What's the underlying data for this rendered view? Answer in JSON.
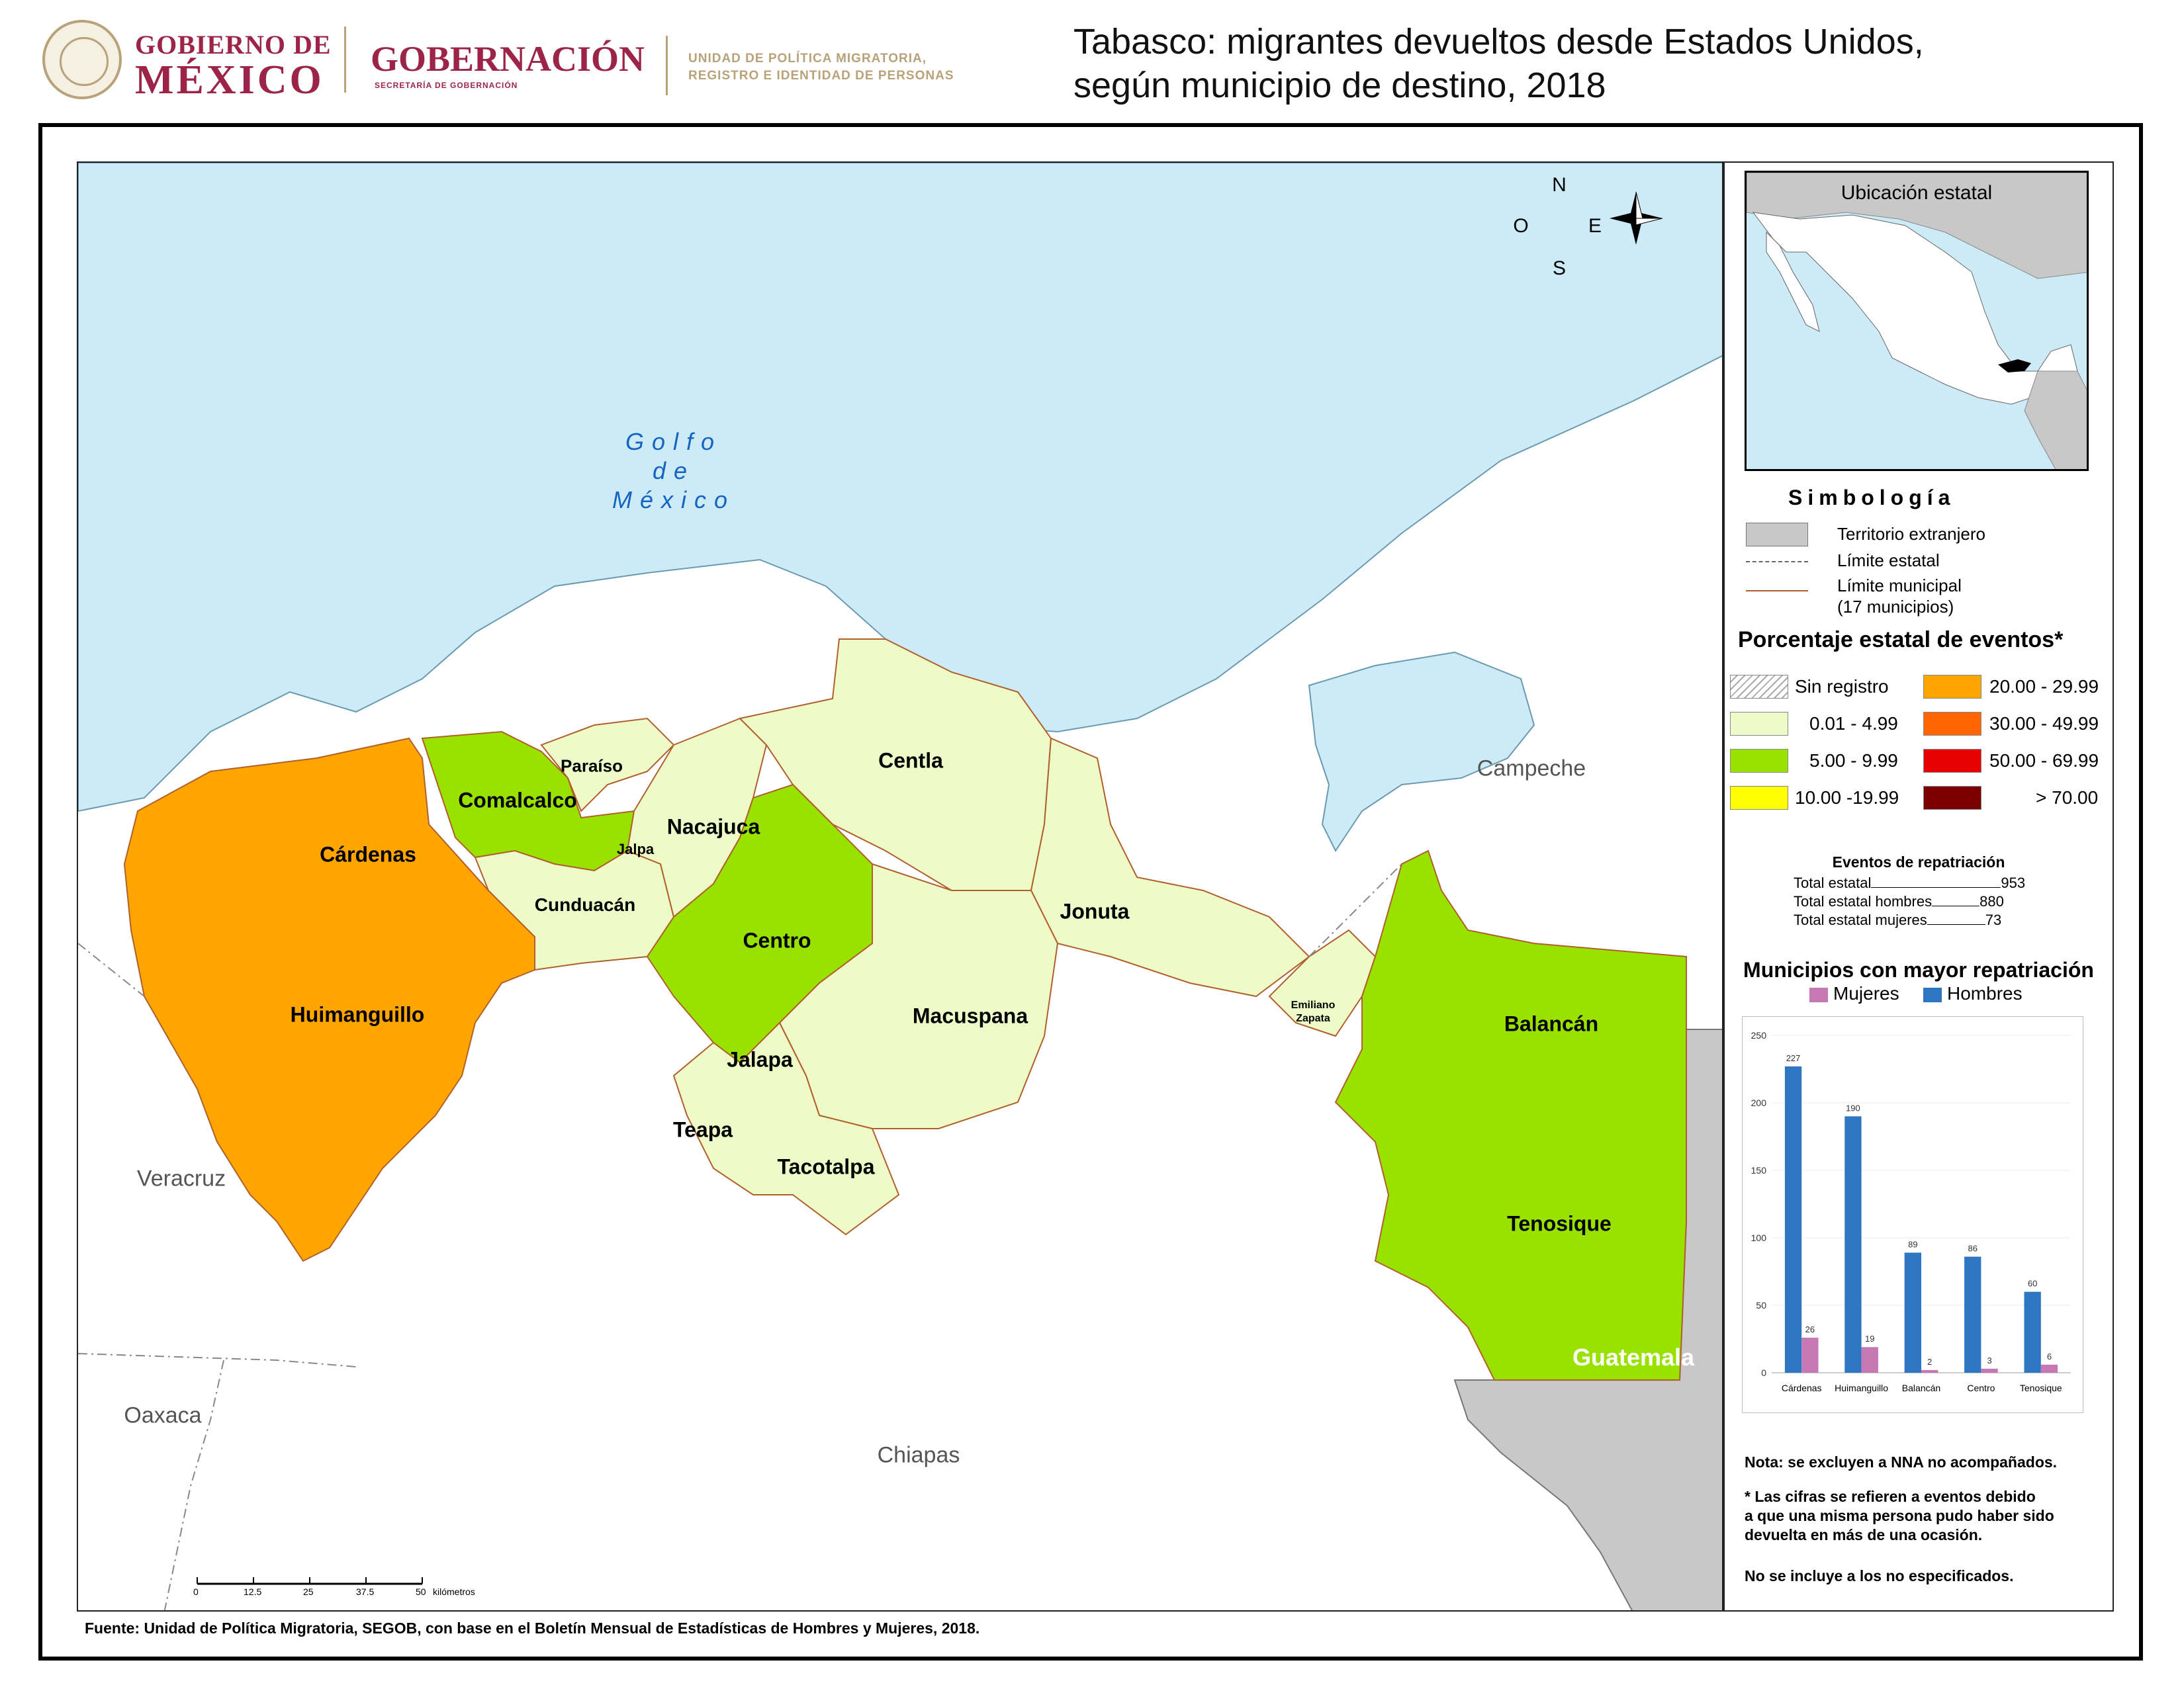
{
  "header": {
    "gob_line1": "GOBIERNO DE",
    "gob_line2": "MÉXICO",
    "gobernacion": "GOBERNACIÓN",
    "gobernacion_sub": "SECRETARÍA DE GOBERNACIÓN",
    "unidad_line1": "UNIDAD DE POLÍTICA MIGRATORIA,",
    "unidad_line2": "REGISTRO E IDENTIDAD DE PERSONAS",
    "title_line1": "Tabasco: migrantes devueltos desde Estados Unidos,",
    "title_line2": "según municipio de destino, 2018"
  },
  "colors": {
    "sea": "#cdeaf7",
    "range_0_5": "#eefbc8",
    "range_5_10": "#99e200",
    "range_20_30": "#ffa500",
    "foreign": "#c8c8c8",
    "hombres": "#2e75c2",
    "mujeres": "#c678b4"
  },
  "map": {
    "gulf_line1": "Golfo",
    "gulf_line2": "de",
    "gulf_line3": "México",
    "compass": {
      "n": "N",
      "s": "S",
      "e": "E",
      "w": "O"
    },
    "regions": {
      "campeche": "Campeche",
      "veracruz": "Veracruz",
      "oaxaca": "Oaxaca",
      "chiapas": "Chiapas",
      "guatemala": "Guatemala"
    },
    "municipios": [
      {
        "name": "Paraíso",
        "range": "0.01 - 4.99"
      },
      {
        "name": "Comalcalco",
        "range": "5.00 - 9.99"
      },
      {
        "name": "Cárdenas",
        "range": "20.00 - 29.99"
      },
      {
        "name": "Jalpa",
        "range": "0.01 - 4.99"
      },
      {
        "name": "Nacajuca",
        "range": "0.01 - 4.99"
      },
      {
        "name": "Centla",
        "range": "0.01 - 4.99"
      },
      {
        "name": "Cunduacán",
        "range": "0.01 - 4.99"
      },
      {
        "name": "Centro",
        "range": "5.00 - 9.99"
      },
      {
        "name": "Jonuta",
        "range": "0.01 - 4.99"
      },
      {
        "name": "Huimanguillo",
        "range": "20.00 - 29.99"
      },
      {
        "name": "Macuspana",
        "range": "0.01 - 4.99"
      },
      {
        "name": "Emiliano Zapata",
        "range": "0.01 - 4.99"
      },
      {
        "name": "Balancán",
        "range": "5.00 - 9.99"
      },
      {
        "name": "Jalapa",
        "range": "0.01 - 4.99"
      },
      {
        "name": "Teapa",
        "range": "0.01 - 4.99"
      },
      {
        "name": "Tacotalpa",
        "range": "0.01 - 4.99"
      },
      {
        "name": "Tenosique",
        "range": "5.00 - 9.99"
      }
    ],
    "scale_ticks": [
      "0",
      "12.5",
      "25",
      "37.5",
      "50"
    ],
    "scale_unit": "kilómetros"
  },
  "sidebar": {
    "inset_title": "Ubicación estatal",
    "simbologia_title": "Simbología",
    "legend": {
      "foreign": "Territorio extranjero",
      "state_limit": "Límite estatal",
      "muni_limit_line1": "Límite municipal",
      "muni_limit_line2": "(17 municipios)"
    },
    "pct_title": "Porcentaje estatal de eventos*",
    "classes": [
      {
        "label": "Sin registro",
        "color": "hatch"
      },
      {
        "label": "0.01  - 4.99",
        "color": "#eefbc8"
      },
      {
        "label": "5.00  - 9.99",
        "color": "#99e200"
      },
      {
        "label": "10.00 -19.99",
        "color": "#ffff00"
      },
      {
        "label": "20.00 - 29.99",
        "color": "#ffa500"
      },
      {
        "label": "30.00 - 49.99",
        "color": "#ff6600"
      },
      {
        "label": "50.00 - 69.99",
        "color": "#e60000"
      },
      {
        "label": "> 70.00",
        "color": "#7a0000"
      }
    ],
    "events_title": "Eventos de repatriación",
    "events": [
      {
        "label": "Total estatal",
        "value": "953"
      },
      {
        "label": "Total estatal hombres",
        "value": "880"
      },
      {
        "label": "Total estatal mujeres",
        "value": "73"
      }
    ],
    "chart_title": "Municipios con mayor repatriación",
    "note1": "Nota: se excluyen a NNA no acompañados.",
    "note2_line1": "* Las cifras se refieren a eventos debido",
    "note2_line2": "a que una misma persona pudo haber sido",
    "note2_line3": "devuelta en más de una ocasión.",
    "note3": "No se incluye a los no especificados."
  },
  "footer": {
    "source": "Fuente: Unidad de Política Migratoria, SEGOB, con base en el Boletín Mensual de Estadísticas de Hombres y Mujeres, 2018."
  },
  "chart_data": {
    "type": "bar",
    "title": "Municipios con mayor repatriación",
    "categories": [
      "Cárdenas",
      "Huimanguillo",
      "Balancán",
      "Centro",
      "Tenosique"
    ],
    "series": [
      {
        "name": "Hombres",
        "values": [
          227,
          190,
          89,
          86,
          60
        ]
      },
      {
        "name": "Mujeres",
        "values": [
          26,
          19,
          2,
          3,
          6
        ]
      }
    ],
    "ylim": [
      0,
      250
    ],
    "yticks": [
      0,
      50,
      100,
      150,
      200,
      250
    ],
    "legend": "top-left"
  }
}
